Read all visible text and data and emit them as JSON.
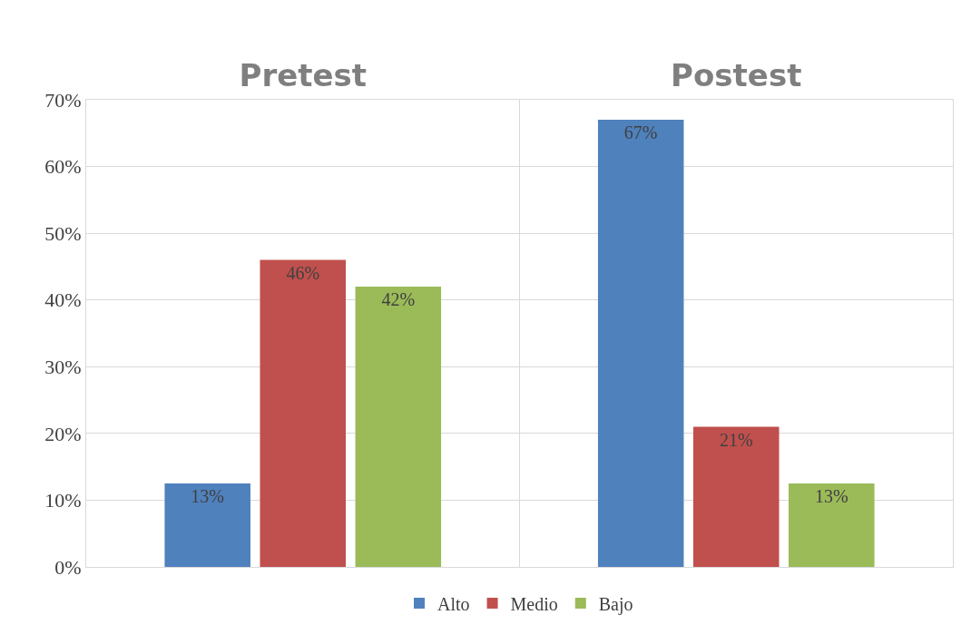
{
  "chart_data": {
    "type": "bar",
    "categories": [
      "Pretest",
      "Postest"
    ],
    "series": [
      {
        "name": "Alto",
        "color": "#4f81bd",
        "values": [
          12.5,
          67
        ],
        "value_labels": [
          "13%",
          "67%"
        ]
      },
      {
        "name": "Medio",
        "color": "#c0504d",
        "values": [
          46,
          21
        ],
        "value_labels": [
          "46%",
          "21%"
        ]
      },
      {
        "name": "Bajo",
        "color": "#9bbb59",
        "values": [
          42,
          12.5
        ],
        "value_labels": [
          "42%",
          "13%"
        ]
      }
    ],
    "ylim": [
      0,
      70
    ],
    "yticks": [
      {
        "value": 0,
        "label": "0%"
      },
      {
        "value": 10,
        "label": "10%"
      },
      {
        "value": 20,
        "label": "20%"
      },
      {
        "value": 30,
        "label": "30%"
      },
      {
        "value": 40,
        "label": "40%"
      },
      {
        "value": 50,
        "label": "50%"
      },
      {
        "value": 60,
        "label": "60%"
      },
      {
        "value": 70,
        "label": "70%"
      }
    ],
    "grid": true,
    "legend": "bottom"
  }
}
